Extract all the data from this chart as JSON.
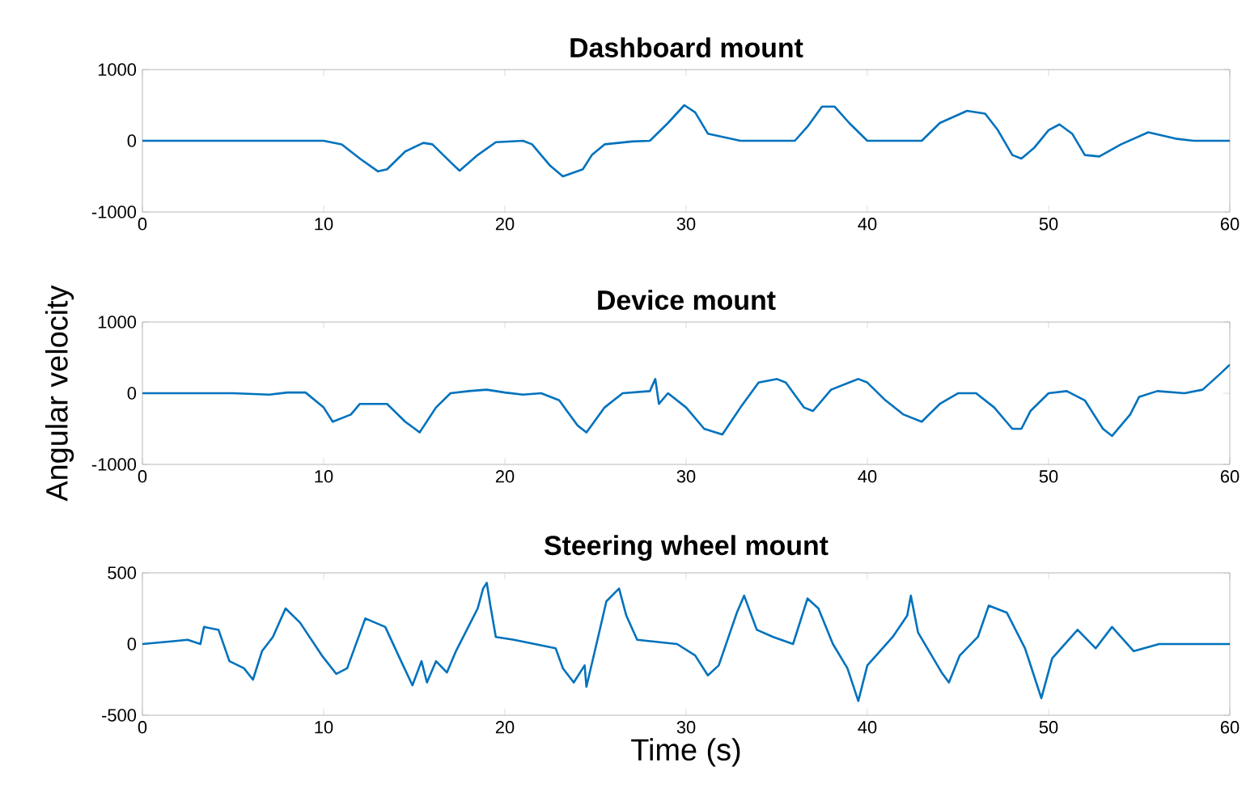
{
  "chart_data": [
    {
      "type": "line",
      "title": "Dashboard mount",
      "xlim": [
        0,
        60
      ],
      "ylim": [
        -1000,
        1000
      ],
      "xticks": [
        0,
        10,
        20,
        30,
        40,
        50,
        60
      ],
      "yticks": [
        -1000,
        0,
        1000
      ],
      "series": [
        {
          "color": "#0072bd",
          "x": [
            0,
            5,
            10,
            11,
            12,
            13,
            13.5,
            14.5,
            15.5,
            16,
            17,
            17.5,
            18.5,
            19.5,
            21,
            21.5,
            22.5,
            23.2,
            24.3,
            24.8,
            25.5,
            27,
            28,
            29,
            29.9,
            30.5,
            31.2,
            33,
            36,
            36.7,
            37.5,
            38.2,
            39,
            40,
            43,
            44,
            45.5,
            46.5,
            47.2,
            48,
            48.5,
            49.2,
            50,
            50.6,
            51.3,
            52,
            52.8,
            54,
            55.5,
            57,
            58,
            60
          ],
          "values": [
            0,
            0,
            0,
            -50,
            -250,
            -430,
            -400,
            -150,
            -30,
            -50,
            -300,
            -420,
            -200,
            -20,
            0,
            -50,
            -350,
            -500,
            -400,
            -200,
            -50,
            -10,
            0,
            250,
            500,
            400,
            100,
            0,
            0,
            200,
            480,
            480,
            250,
            0,
            0,
            250,
            420,
            380,
            150,
            -200,
            -250,
            -100,
            150,
            230,
            100,
            -200,
            -220,
            -50,
            120,
            30,
            0,
            0
          ]
        }
      ]
    },
    {
      "type": "line",
      "title": "Device mount",
      "ylabel": "Angular velocity",
      "xlim": [
        0,
        60
      ],
      "ylim": [
        -1000,
        1000
      ],
      "xticks": [
        0,
        10,
        20,
        30,
        40,
        50,
        60
      ],
      "yticks": [
        -1000,
        0,
        1000
      ],
      "series": [
        {
          "color": "#0072bd",
          "x": [
            0,
            5,
            7,
            8,
            9,
            10,
            10.5,
            11.5,
            12,
            13.5,
            14.5,
            15.3,
            16.2,
            17,
            18,
            19,
            20,
            21,
            22,
            23,
            24,
            24.5,
            25.5,
            26.5,
            28,
            28.3,
            28.5,
            29,
            30,
            31,
            32,
            33,
            34,
            35,
            35.5,
            36.5,
            37,
            38,
            39,
            39.5,
            40,
            41,
            42,
            43,
            44,
            45,
            46,
            47,
            48,
            48.5,
            49,
            50,
            51,
            52,
            53,
            53.5,
            54.5,
            55,
            56,
            57.5,
            58.5,
            59.5,
            60
          ],
          "values": [
            0,
            0,
            -20,
            10,
            10,
            -200,
            -400,
            -300,
            -150,
            -150,
            -400,
            -550,
            -200,
            0,
            30,
            50,
            10,
            -20,
            0,
            -100,
            -450,
            -550,
            -200,
            0,
            30,
            200,
            -150,
            0,
            -200,
            -500,
            -580,
            -200,
            150,
            200,
            150,
            -200,
            -250,
            50,
            150,
            200,
            150,
            -100,
            -300,
            -400,
            -150,
            0,
            0,
            -200,
            -500,
            -500,
            -250,
            0,
            30,
            -100,
            -500,
            -600,
            -300,
            -50,
            30,
            0,
            50,
            280,
            400
          ]
        }
      ]
    },
    {
      "type": "line",
      "title": "Steering wheel mount",
      "xlabel": "Time (s)",
      "xlim": [
        0,
        60
      ],
      "ylim": [
        -500,
        500
      ],
      "xticks": [
        0,
        10,
        20,
        30,
        40,
        50,
        60
      ],
      "yticks": [
        -500,
        0,
        500
      ],
      "series": [
        {
          "color": "#0072bd",
          "x": [
            0,
            1.7,
            2.5,
            3.2,
            3.4,
            4.2,
            4.8,
            5.6,
            6.1,
            6.6,
            7.2,
            7.9,
            8.7,
            9.9,
            10.7,
            11.3,
            12.3,
            13.4,
            14.2,
            14.9,
            15.4,
            15.7,
            16.2,
            16.8,
            17.3,
            18.5,
            18.8,
            19.0,
            19.2,
            19.5,
            20.5,
            22.8,
            23.2,
            23.8,
            24.4,
            24.5,
            25.2,
            25.6,
            26.3,
            26.7,
            27.3,
            29.5,
            30.5,
            31.2,
            31.8,
            32.8,
            33.2,
            33.9,
            34.8,
            35.9,
            36.7,
            37.3,
            38.1,
            38.9,
            39.5,
            40.0,
            41.4,
            42.2,
            42.4,
            42.8,
            44.1,
            44.5,
            45.1,
            46.1,
            46.7,
            47.7,
            48.7,
            49.6,
            50.2,
            51.6,
            52.6,
            53.5,
            54.7,
            56.1,
            60
          ],
          "values": [
            0,
            20,
            30,
            0,
            120,
            100,
            -120,
            -170,
            -250,
            -50,
            50,
            250,
            150,
            -80,
            -210,
            -170,
            180,
            120,
            -100,
            -290,
            -120,
            -270,
            -120,
            -200,
            -50,
            250,
            390,
            430,
            270,
            50,
            30,
            -30,
            -170,
            -270,
            -150,
            -300,
            80,
            300,
            390,
            200,
            30,
            0,
            -80,
            -220,
            -150,
            220,
            340,
            100,
            50,
            0,
            320,
            250,
            0,
            -170,
            -400,
            -150,
            50,
            200,
            340,
            80,
            -200,
            -270,
            -80,
            50,
            270,
            220,
            -30,
            -380,
            -100,
            100,
            -30,
            120,
            -50,
            0,
            0
          ]
        }
      ]
    }
  ]
}
